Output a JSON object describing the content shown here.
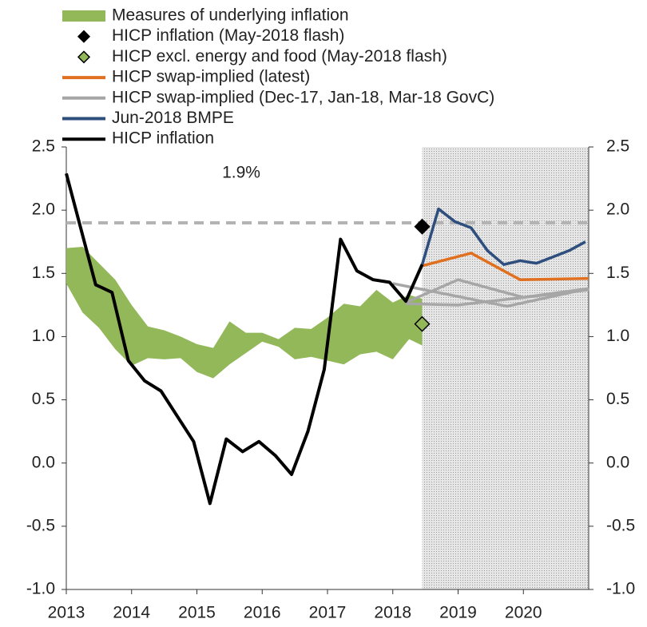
{
  "chart_data": {
    "type": "line",
    "xlim": [
      2013,
      2021
    ],
    "xticks": [
      2013,
      2014,
      2015,
      2016,
      2017,
      2018,
      2019,
      2020
    ],
    "ylim": [
      -1.0,
      2.5
    ],
    "yticks": [
      2.5,
      {
        "value": 2.0,
        "label": "2.0"
      },
      1.5,
      {
        "value": 1.0,
        "label": "1.0"
      },
      0.5,
      {
        "value": 0.0,
        "label": "0.0"
      },
      -0.5,
      {
        "value": -1.0,
        "label": "-1.0"
      }
    ],
    "projection_shade": [
      2018.45,
      2021
    ],
    "target_line": {
      "value": 1.9,
      "color": "#b3b3b3",
      "annotation": "1.9%"
    },
    "series": [
      {
        "name": "Measures of underlying inflation",
        "kind": "band",
        "color": "#92b85a",
        "x": [
          2013,
          2013.25,
          2013.5,
          2013.75,
          2014,
          2014.25,
          2014.5,
          2014.75,
          2015,
          2015.25,
          2015.5,
          2015.75,
          2016,
          2016.25,
          2016.5,
          2016.75,
          2017,
          2017.25,
          2017.5,
          2017.75,
          2018,
          2018.25,
          2018.45
        ],
        "upper": [
          1.7,
          1.71,
          1.58,
          1.45,
          1.25,
          1.08,
          1.05,
          1.0,
          0.94,
          0.91,
          1.12,
          1.03,
          1.03,
          0.98,
          1.07,
          1.06,
          1.15,
          1.26,
          1.24,
          1.37,
          1.27,
          1.33,
          1.3
        ],
        "lower": [
          1.42,
          1.19,
          1.07,
          0.9,
          0.77,
          0.83,
          0.82,
          0.83,
          0.72,
          0.67,
          0.78,
          0.87,
          0.96,
          0.92,
          0.82,
          0.84,
          0.81,
          0.78,
          0.86,
          0.88,
          0.82,
          0.98,
          0.93
        ]
      },
      {
        "name": "HICP inflation (May-2018 flash)",
        "kind": "marker",
        "color": "#000000",
        "x": [
          2018.45
        ],
        "values": [
          1.87
        ]
      },
      {
        "name": "HICP excl. energy and food (May-2018 flash)",
        "kind": "marker",
        "color": "#92b85a",
        "x": [
          2018.45
        ],
        "values": [
          1.1
        ]
      },
      {
        "name": "HICP swap-implied (latest)",
        "kind": "line",
        "color": "#e07020",
        "x": [
          2018.45,
          2019.2,
          2019.95,
          2021
        ],
        "values": [
          1.56,
          1.66,
          1.45,
          1.46
        ]
      },
      {
        "name": "HICP swap-implied (Dec-17, Jan-18, Mar-18 GovC)",
        "kind": "lines",
        "color": "#a6a6a6",
        "segments": [
          {
            "x": [
              2018.0,
              2019.75,
              2021
            ],
            "values": [
              1.42,
              1.24,
              1.38
            ]
          },
          {
            "x": [
              2018.2,
              2019.0,
              2020.0,
              2021
            ],
            "values": [
              1.27,
              1.45,
              1.31,
              1.38
            ]
          },
          {
            "x": [
              2018.2,
              2019.0,
              2020.0,
              2021
            ],
            "values": [
              1.26,
              1.25,
              1.31,
              1.37
            ]
          }
        ]
      },
      {
        "name": "Jun-2018 BMPE",
        "kind": "line",
        "color": "#2e4e7e",
        "x": [
          2018.45,
          2018.7,
          2018.95,
          2019.2,
          2019.45,
          2019.7,
          2019.95,
          2020.2,
          2020.45,
          2020.7,
          2020.95
        ],
        "values": [
          1.57,
          2.01,
          1.91,
          1.86,
          1.68,
          1.57,
          1.6,
          1.58,
          1.63,
          1.68,
          1.75
        ]
      },
      {
        "name": "HICP inflation",
        "kind": "line",
        "color": "#000000",
        "x": [
          2013,
          2013.45,
          2013.7,
          2013.95,
          2014.2,
          2014.45,
          2014.7,
          2014.95,
          2015.2,
          2015.45,
          2015.7,
          2015.95,
          2016.2,
          2016.45,
          2016.7,
          2016.95,
          2017.2,
          2017.45,
          2017.7,
          2017.95,
          2018.2,
          2018.45
        ],
        "values": [
          2.29,
          1.41,
          1.35,
          0.81,
          0.65,
          0.57,
          0.37,
          0.17,
          -0.32,
          0.19,
          0.09,
          0.17,
          0.06,
          -0.09,
          0.25,
          0.74,
          1.77,
          1.52,
          1.45,
          1.43,
          1.28,
          1.57
        ]
      }
    ]
  }
}
